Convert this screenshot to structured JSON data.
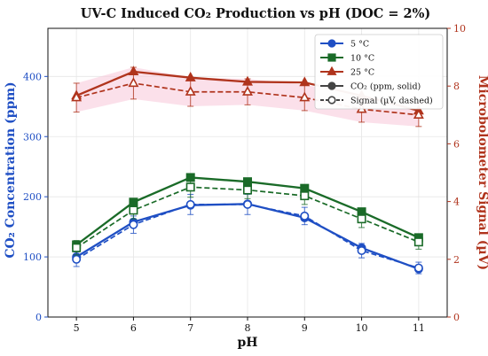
{
  "chart_data": {
    "type": "line",
    "title": "UV-C Induced CO₂ Production vs pH  (DOC = 2%)",
    "xlabel": "pH",
    "ylabel_left": "CO₂ Concentration (ppm)",
    "ylabel_right": "Microbolometer Signal (µV)",
    "x": [
      5,
      6,
      7,
      8,
      9,
      10,
      11
    ],
    "xlim": [
      4.5,
      11.5
    ],
    "ylim_left": [
      0,
      480
    ],
    "ylim_right": [
      0,
      10
    ],
    "xticks": [
      "5",
      "6",
      "7",
      "8",
      "9",
      "10",
      "11"
    ],
    "yticks_left": [
      "0",
      "100",
      "200",
      "300",
      "400"
    ],
    "yticks_right": [
      "0",
      "2",
      "4",
      "6",
      "8",
      "10"
    ],
    "grid": true,
    "legend_position": "top-right",
    "colors": {
      "5C": "#1f4fc4",
      "10C": "#1a6b28",
      "25C": "#b0341d",
      "left_axis": "#1f4fc4",
      "right_axis": "#b0341d"
    },
    "series": [
      {
        "name": "5 °C",
        "marker": "circle",
        "axis": "left",
        "style": "solid",
        "values": [
          100,
          158,
          186,
          188,
          165,
          115,
          80
        ]
      },
      {
        "name": "10 °C",
        "marker": "square",
        "axis": "left",
        "style": "solid",
        "values": [
          120,
          191,
          232,
          225,
          214,
          175,
          132
        ]
      },
      {
        "name": "25 °C",
        "marker": "triangle",
        "axis": "left",
        "style": "solid",
        "values": [
          368,
          408,
          398,
          391,
          390,
          368,
          343
        ]
      },
      {
        "marker": "circle",
        "axis": "right",
        "style": "dashed",
        "values": [
          2.0,
          3.2,
          3.9,
          3.9,
          3.5,
          2.3,
          1.7
        ],
        "errors": [
          0.25,
          0.3,
          0.35,
          0.35,
          0.3,
          0.25,
          0.2
        ]
      },
      {
        "marker": "square",
        "axis": "right",
        "style": "dashed",
        "values": [
          2.4,
          3.7,
          4.5,
          4.4,
          4.2,
          3.4,
          2.6
        ],
        "errors": [
          0.25,
          0.3,
          0.35,
          0.3,
          0.3,
          0.3,
          0.25
        ]
      },
      {
        "marker": "triangle",
        "axis": "right",
        "style": "dashed",
        "values": [
          7.6,
          8.1,
          7.8,
          7.8,
          7.6,
          7.2,
          7.0
        ],
        "errors": [
          0.5,
          0.55,
          0.5,
          0.45,
          0.45,
          0.45,
          0.4
        ]
      }
    ],
    "legend": {
      "entries": [
        "5 °C",
        "10 °C",
        "25 °C"
      ],
      "style_entries": [
        "CO₂ (ppm, solid)",
        "Signal (µV, dashed)"
      ]
    }
  }
}
